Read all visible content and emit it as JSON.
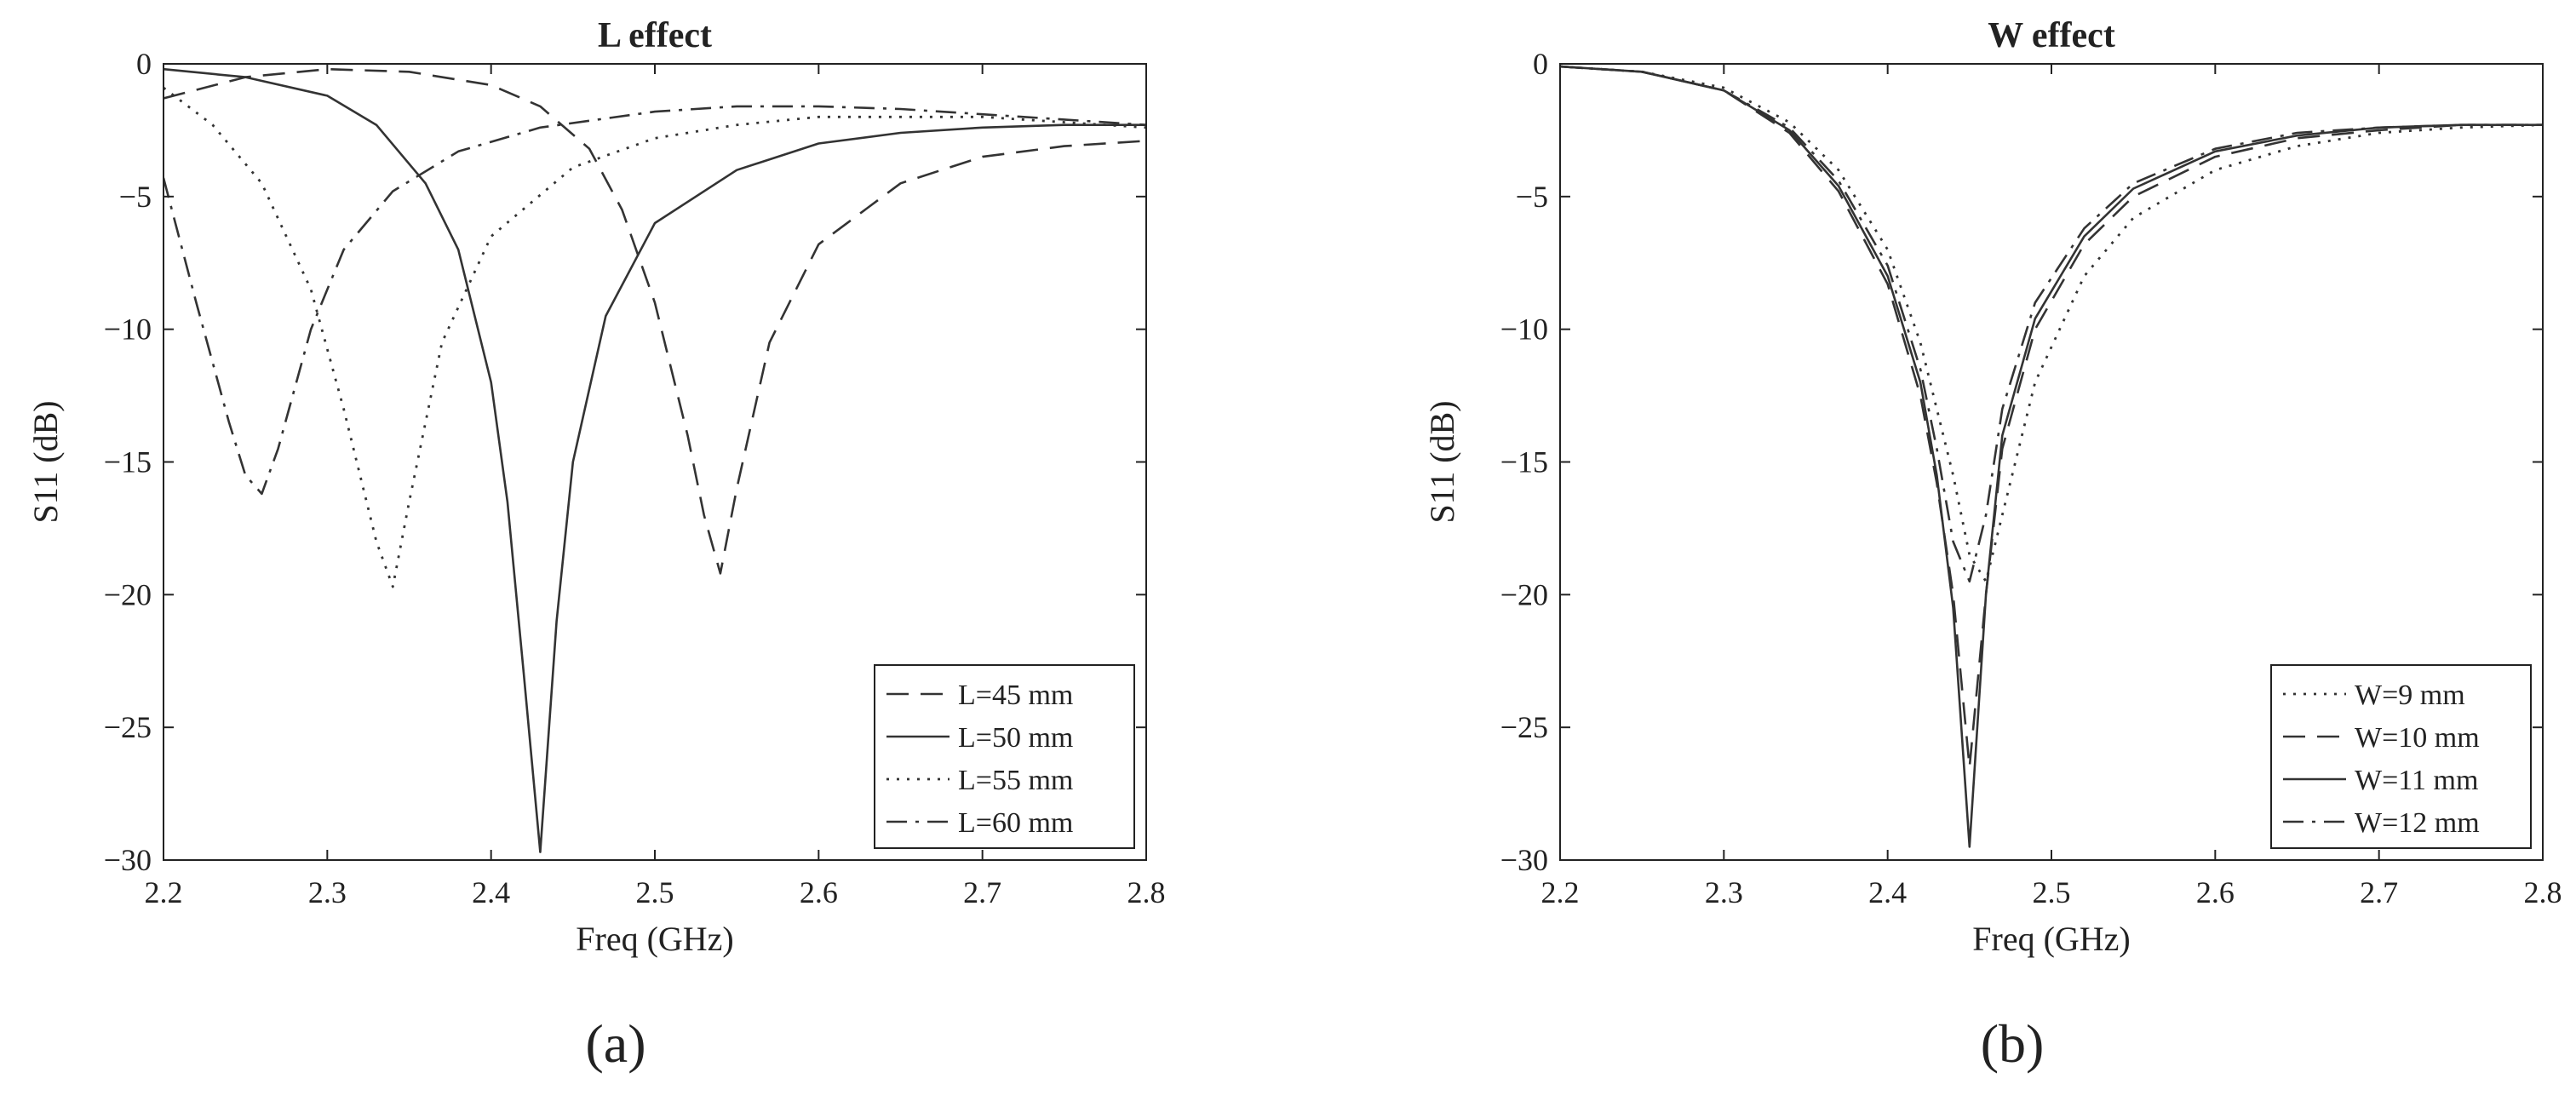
{
  "figure": {
    "panel_labels": [
      "(a)",
      "(b)"
    ]
  },
  "chart_data": [
    {
      "type": "line",
      "title": "L effect",
      "xlabel": "Freq (GHz)",
      "ylabel": "S11 (dB)",
      "xlim": [
        2.2,
        2.8
      ],
      "ylim": [
        -30,
        0
      ],
      "xticks": [
        2.2,
        2.3,
        2.4,
        2.5,
        2.6,
        2.7,
        2.8
      ],
      "yticks": [
        0,
        -5,
        -10,
        -15,
        -20,
        -25,
        -30
      ],
      "xtick_labels": [
        "2.2",
        "2.3",
        "2.4",
        "2.5",
        "2.6",
        "2.7",
        "2.8"
      ],
      "ytick_labels": [
        "0",
        "−5",
        "−10",
        "−15",
        "−20",
        "−25",
        "−30"
      ],
      "legend_position": "bottom-right",
      "grid": false,
      "series": [
        {
          "name": "L=45 mm",
          "style": "dashed",
          "x": [
            2.2,
            2.25,
            2.3,
            2.35,
            2.4,
            2.43,
            2.46,
            2.48,
            2.5,
            2.52,
            2.53,
            2.54,
            2.55,
            2.57,
            2.6,
            2.65,
            2.7,
            2.75,
            2.8
          ],
          "y": [
            -1.3,
            -0.5,
            -0.2,
            -0.3,
            -0.8,
            -1.6,
            -3.2,
            -5.5,
            -9.0,
            -14.0,
            -17.0,
            -19.2,
            -16.0,
            -10.5,
            -6.8,
            -4.5,
            -3.5,
            -3.1,
            -2.9
          ]
        },
        {
          "name": "L=50 mm",
          "style": "solid",
          "x": [
            2.2,
            2.25,
            2.3,
            2.33,
            2.36,
            2.38,
            2.4,
            2.41,
            2.42,
            2.43,
            2.44,
            2.45,
            2.47,
            2.5,
            2.55,
            2.6,
            2.65,
            2.7,
            2.75,
            2.8
          ],
          "y": [
            -0.2,
            -0.5,
            -1.2,
            -2.3,
            -4.5,
            -7.0,
            -12.0,
            -16.5,
            -23.0,
            -29.7,
            -21.0,
            -15.0,
            -9.5,
            -6.0,
            -4.0,
            -3.0,
            -2.6,
            -2.4,
            -2.3,
            -2.3
          ]
        },
        {
          "name": "L=55 mm",
          "style": "dotted",
          "x": [
            2.2,
            2.23,
            2.26,
            2.29,
            2.31,
            2.33,
            2.34,
            2.35,
            2.37,
            2.4,
            2.45,
            2.5,
            2.55,
            2.6,
            2.7,
            2.8
          ],
          "y": [
            -0.9,
            -2.3,
            -4.5,
            -8.5,
            -13.0,
            -18.0,
            -19.7,
            -16.5,
            -10.5,
            -6.5,
            -3.9,
            -2.8,
            -2.3,
            -2.0,
            -2.0,
            -2.4
          ]
        },
        {
          "name": "L=60 mm",
          "style": "dashdot",
          "x": [
            2.2,
            2.22,
            2.24,
            2.25,
            2.26,
            2.27,
            2.29,
            2.31,
            2.34,
            2.38,
            2.43,
            2.5,
            2.55,
            2.6,
            2.65,
            2.7,
            2.75,
            2.8
          ],
          "y": [
            -4.3,
            -9.0,
            -13.5,
            -15.5,
            -16.2,
            -14.5,
            -10.0,
            -7.0,
            -4.8,
            -3.3,
            -2.4,
            -1.8,
            -1.6,
            -1.6,
            -1.7,
            -1.9,
            -2.1,
            -2.3
          ]
        }
      ]
    },
    {
      "type": "line",
      "title": "W effect",
      "xlabel": "Freq (GHz)",
      "ylabel": "S11 (dB)",
      "xlim": [
        2.2,
        2.8
      ],
      "ylim": [
        -30,
        0
      ],
      "xticks": [
        2.2,
        2.3,
        2.4,
        2.5,
        2.6,
        2.7,
        2.8
      ],
      "yticks": [
        0,
        -5,
        -10,
        -15,
        -20,
        -25,
        -30
      ],
      "xtick_labels": [
        "2.2",
        "2.3",
        "2.4",
        "2.5",
        "2.6",
        "2.7",
        "2.8"
      ],
      "ytick_labels": [
        "0",
        "−5",
        "−10",
        "−15",
        "−20",
        "−25",
        "−30"
      ],
      "legend_position": "bottom-right",
      "grid": false,
      "series": [
        {
          "name": "W=9 mm",
          "style": "dotted",
          "x": [
            2.2,
            2.25,
            2.3,
            2.34,
            2.37,
            2.4,
            2.42,
            2.44,
            2.45,
            2.46,
            2.47,
            2.49,
            2.52,
            2.55,
            2.6,
            2.65,
            2.7,
            2.75,
            2.8
          ],
          "y": [
            -0.1,
            -0.3,
            -0.9,
            -2.2,
            -4.0,
            -7.0,
            -10.5,
            -15.5,
            -18.5,
            -19.5,
            -17.0,
            -12.0,
            -8.0,
            -5.8,
            -4.0,
            -3.1,
            -2.6,
            -2.4,
            -2.3
          ]
        },
        {
          "name": "W=10 mm",
          "style": "dashed",
          "x": [
            2.2,
            2.25,
            2.3,
            2.34,
            2.37,
            2.4,
            2.42,
            2.43,
            2.44,
            2.45,
            2.46,
            2.47,
            2.49,
            2.52,
            2.55,
            2.6,
            2.65,
            2.7,
            2.75,
            2.8
          ],
          "y": [
            -0.1,
            -0.3,
            -1.0,
            -2.6,
            -4.8,
            -8.3,
            -12.5,
            -15.8,
            -20.0,
            -26.5,
            -20.0,
            -14.5,
            -10.0,
            -6.8,
            -5.0,
            -3.5,
            -2.8,
            -2.5,
            -2.3,
            -2.3
          ]
        },
        {
          "name": "W=11 mm",
          "style": "solid",
          "x": [
            2.2,
            2.25,
            2.3,
            2.34,
            2.37,
            2.4,
            2.42,
            2.43,
            2.44,
            2.45,
            2.46,
            2.47,
            2.49,
            2.52,
            2.55,
            2.6,
            2.65,
            2.7,
            2.75,
            2.8
          ],
          "y": [
            -0.1,
            -0.3,
            -1.0,
            -2.5,
            -4.6,
            -8.0,
            -12.0,
            -15.5,
            -20.5,
            -29.5,
            -20.0,
            -14.0,
            -9.6,
            -6.5,
            -4.7,
            -3.3,
            -2.7,
            -2.4,
            -2.3,
            -2.3
          ]
        },
        {
          "name": "W=12 mm",
          "style": "dashdot",
          "x": [
            2.2,
            2.25,
            2.3,
            2.34,
            2.37,
            2.4,
            2.42,
            2.43,
            2.44,
            2.45,
            2.46,
            2.47,
            2.49,
            2.52,
            2.55,
            2.6,
            2.65,
            2.7,
            2.75,
            2.8
          ],
          "y": [
            -0.1,
            -0.3,
            -1.0,
            -2.4,
            -4.4,
            -7.6,
            -11.5,
            -14.5,
            -18.0,
            -19.5,
            -17.0,
            -13.0,
            -9.0,
            -6.2,
            -4.5,
            -3.2,
            -2.6,
            -2.4,
            -2.3,
            -2.3
          ]
        }
      ]
    }
  ]
}
